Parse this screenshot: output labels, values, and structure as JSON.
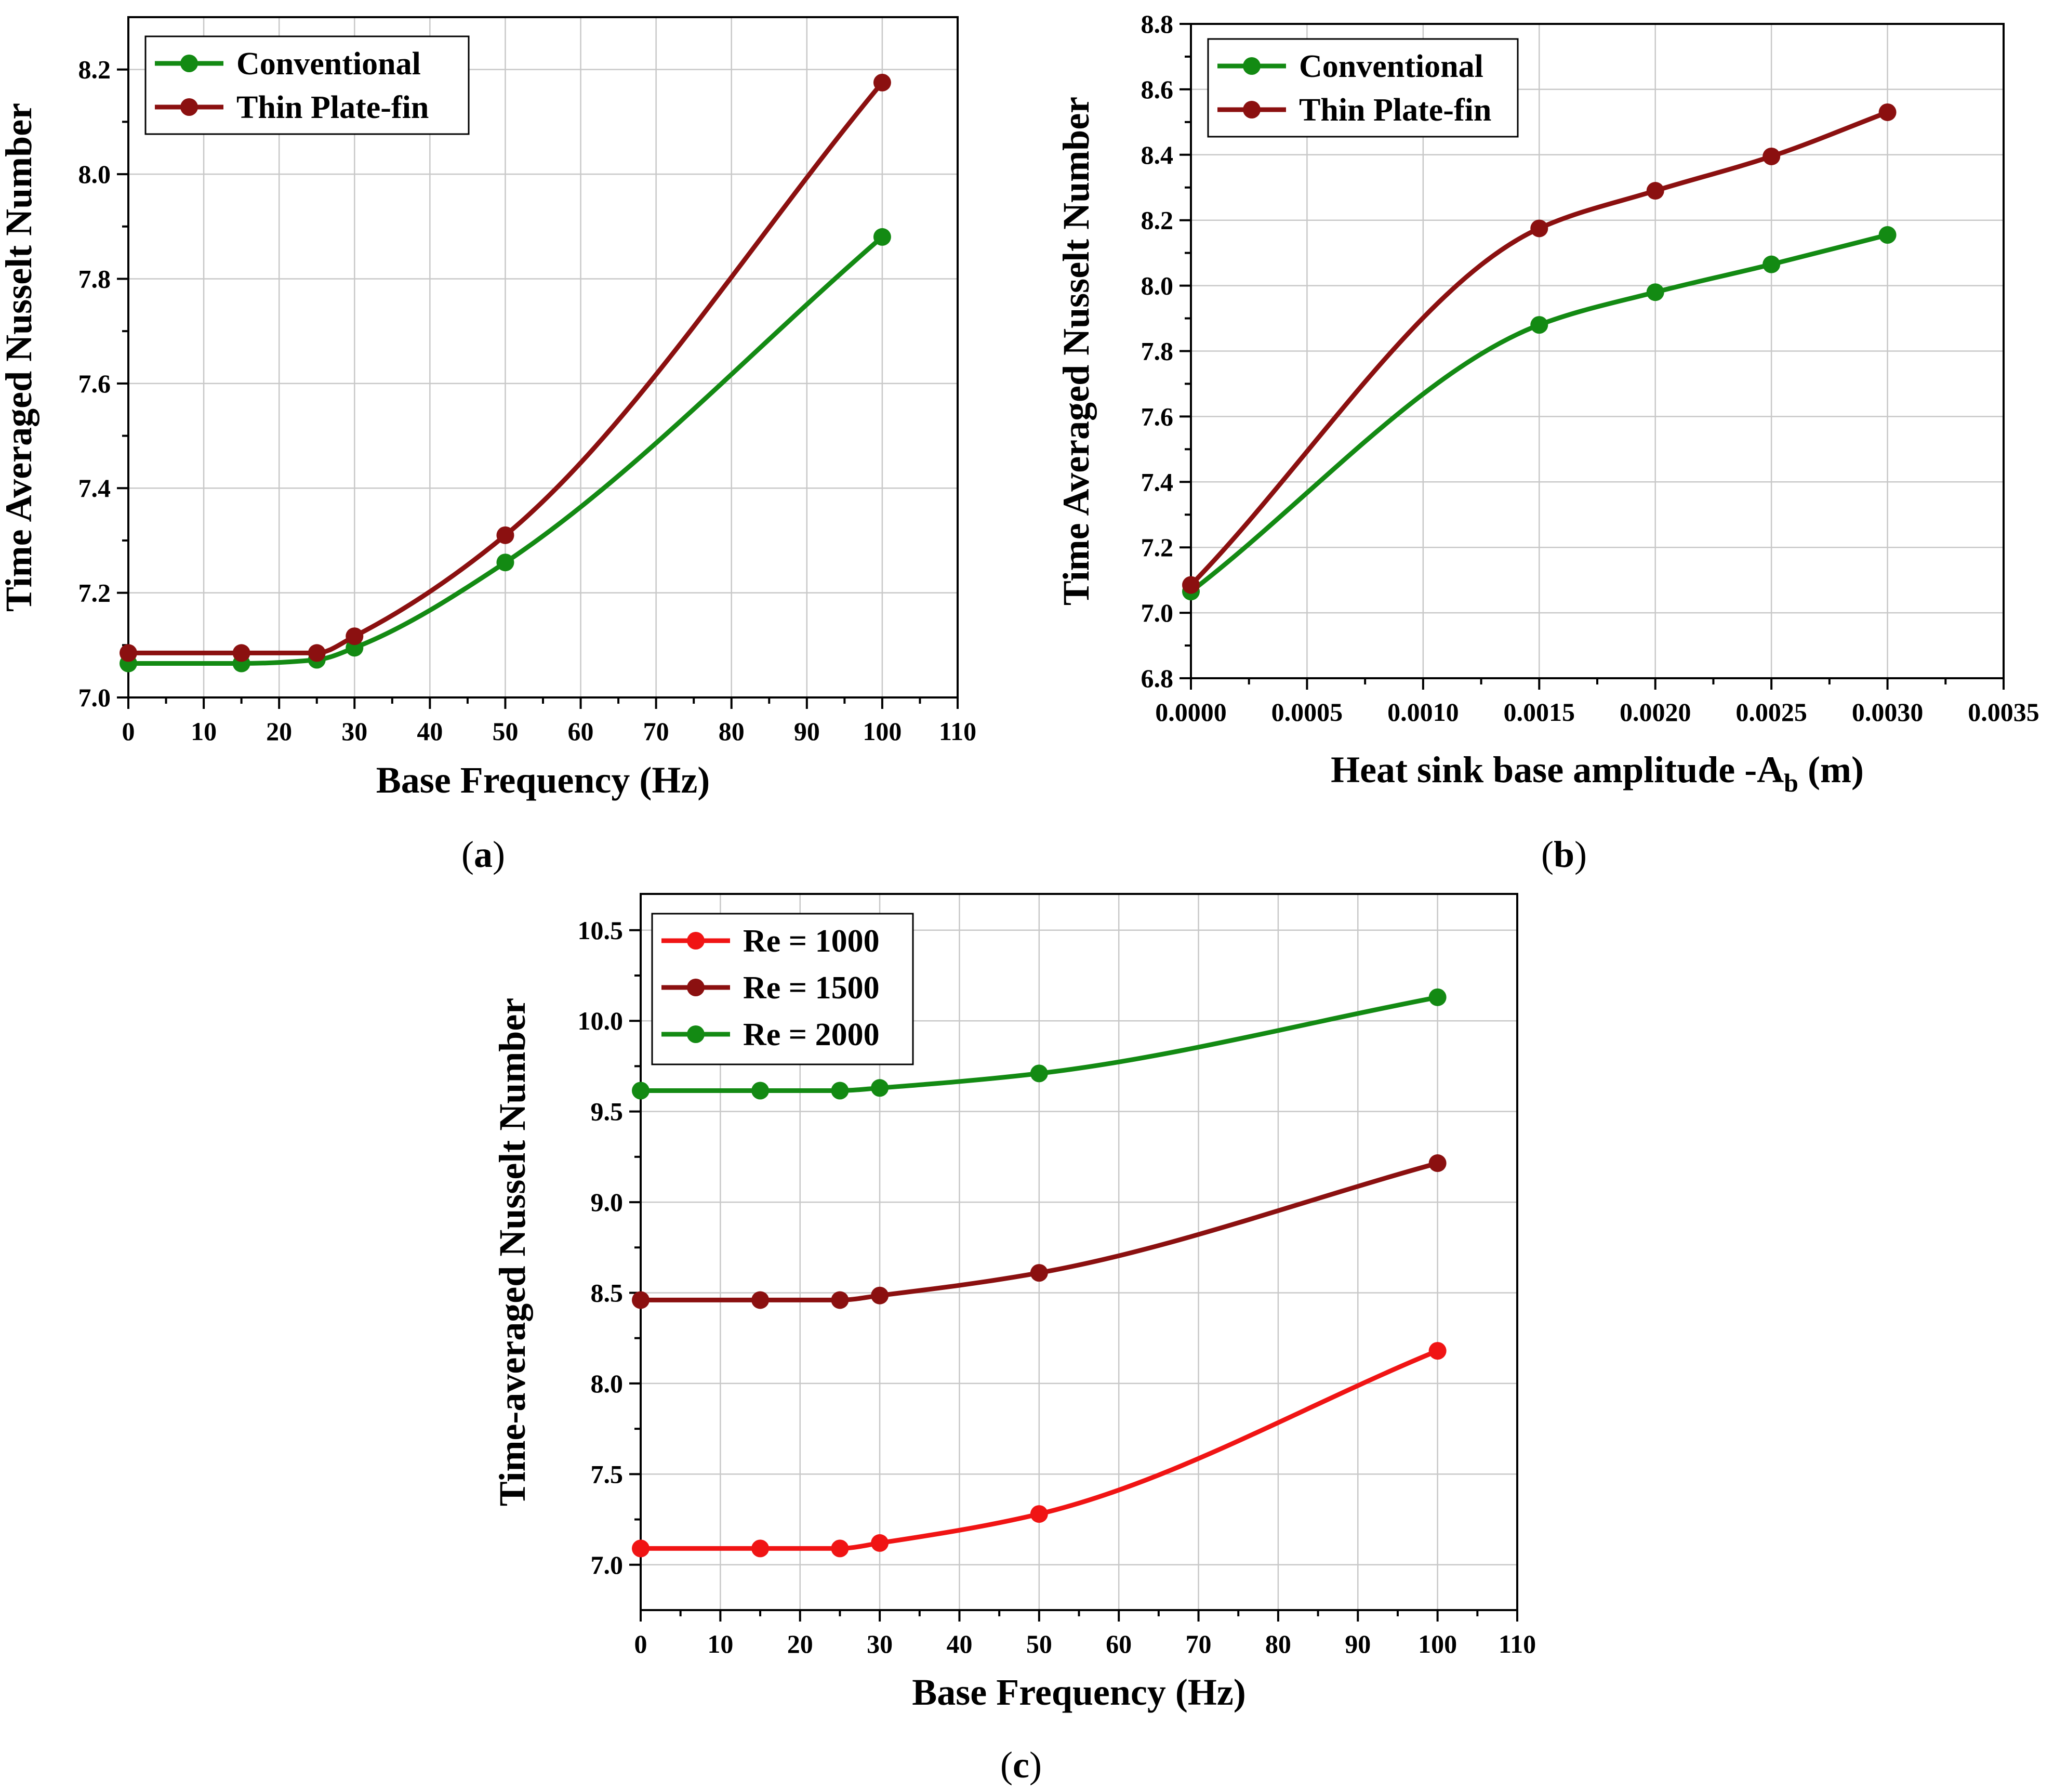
{
  "chart_data": [
    {
      "id": "a",
      "type": "line",
      "caption": "a",
      "xlabel": "Base Frequency (Hz)",
      "ylabel": "Time Averaged Nusselt Number",
      "xlim": [
        0,
        110
      ],
      "ylim": [
        7.0,
        8.3
      ],
      "xticks": [
        0,
        10,
        20,
        30,
        40,
        50,
        60,
        70,
        80,
        90,
        100,
        110
      ],
      "yticks": [
        7.0,
        7.2,
        7.4,
        7.6,
        7.8,
        8.0,
        8.2
      ],
      "xtick_labels": [
        "0",
        "10",
        "20",
        "30",
        "40",
        "50",
        "60",
        "70",
        "80",
        "90",
        "100",
        "110"
      ],
      "ytick_labels": [
        "7.0",
        "7.2",
        "7.4",
        "7.6",
        "7.8",
        "8.0",
        "8.2"
      ],
      "grid": true,
      "legend_position": "top-left",
      "series": [
        {
          "name": "Conventional",
          "color": "#138a13",
          "x": [
            0,
            15,
            25,
            30,
            50,
            100
          ],
          "y": [
            7.065,
            7.065,
            7.072,
            7.095,
            7.258,
            7.88
          ]
        },
        {
          "name": "Thin Plate-fin",
          "color": "#8b1010",
          "x": [
            0,
            15,
            25,
            30,
            50,
            100
          ],
          "y": [
            7.085,
            7.085,
            7.085,
            7.117,
            7.31,
            8.175
          ]
        }
      ]
    },
    {
      "id": "b",
      "type": "line",
      "caption": "b",
      "xlabel": "Heat sink base amplitude -A",
      "xlabel_sub": "b",
      "xlabel_unit": " (m)",
      "ylabel": "Time Averaged Nusselt Number",
      "xlim": [
        0,
        0.0035
      ],
      "ylim": [
        6.8,
        8.8
      ],
      "xticks": [
        0,
        0.0005,
        0.001,
        0.0015,
        0.002,
        0.0025,
        0.003,
        0.0035
      ],
      "yticks": [
        6.8,
        7.0,
        7.2,
        7.4,
        7.6,
        7.8,
        8.0,
        8.2,
        8.4,
        8.6,
        8.8
      ],
      "xtick_labels": [
        "0.0000",
        "0.0005",
        "0.0010",
        "0.0015",
        "0.0020",
        "0.0025",
        "0.0030",
        "0.0035"
      ],
      "ytick_labels": [
        "6.8",
        "7.0",
        "7.2",
        "7.4",
        "7.6",
        "7.8",
        "8.0",
        "8.2",
        "8.4",
        "8.6",
        "8.8"
      ],
      "grid": true,
      "legend_position": "top-left",
      "series": [
        {
          "name": "Conventional",
          "color": "#138a13",
          "x": [
            0,
            0.0015,
            0.002,
            0.0025,
            0.003
          ],
          "y": [
            7.065,
            7.88,
            7.98,
            8.065,
            8.155
          ]
        },
        {
          "name": "Thin Plate-fin",
          "color": "#8b1010",
          "x": [
            0,
            0.0015,
            0.002,
            0.0025,
            0.003
          ],
          "y": [
            7.085,
            8.175,
            8.29,
            8.395,
            8.53
          ]
        }
      ]
    },
    {
      "id": "c",
      "type": "line",
      "caption": "c",
      "xlabel": "Base Frequency (Hz)",
      "ylabel": "Time-averaged Nusselt Number",
      "xlim": [
        0,
        110
      ],
      "ylim": [
        6.75,
        10.7
      ],
      "xticks": [
        0,
        10,
        20,
        30,
        40,
        50,
        60,
        70,
        80,
        90,
        100,
        110
      ],
      "yticks": [
        7.0,
        7.5,
        8.0,
        8.5,
        9.0,
        9.5,
        10.0,
        10.5
      ],
      "xtick_labels": [
        "0",
        "10",
        "20",
        "30",
        "40",
        "50",
        "60",
        "70",
        "80",
        "90",
        "100",
        "110"
      ],
      "ytick_labels": [
        "7.0",
        "7.5",
        "8.0",
        "8.5",
        "9.0",
        "9.5",
        "10.0",
        "10.5"
      ],
      "grid": true,
      "legend_position": "top-left",
      "series": [
        {
          "name": "Re = 1000",
          "color": "#f01414",
          "x": [
            0,
            15,
            25,
            30,
            50,
            100
          ],
          "y": [
            7.09,
            7.09,
            7.09,
            7.12,
            7.28,
            8.18
          ]
        },
        {
          "name": "Re = 1500",
          "color": "#8b1010",
          "x": [
            0,
            15,
            25,
            30,
            50,
            100
          ],
          "y": [
            8.46,
            8.46,
            8.46,
            8.485,
            8.61,
            9.215
          ]
        },
        {
          "name": "Re = 2000",
          "color": "#138a13",
          "x": [
            0,
            15,
            25,
            30,
            50,
            100
          ],
          "y": [
            9.615,
            9.615,
            9.615,
            9.63,
            9.71,
            10.13
          ]
        }
      ]
    }
  ]
}
